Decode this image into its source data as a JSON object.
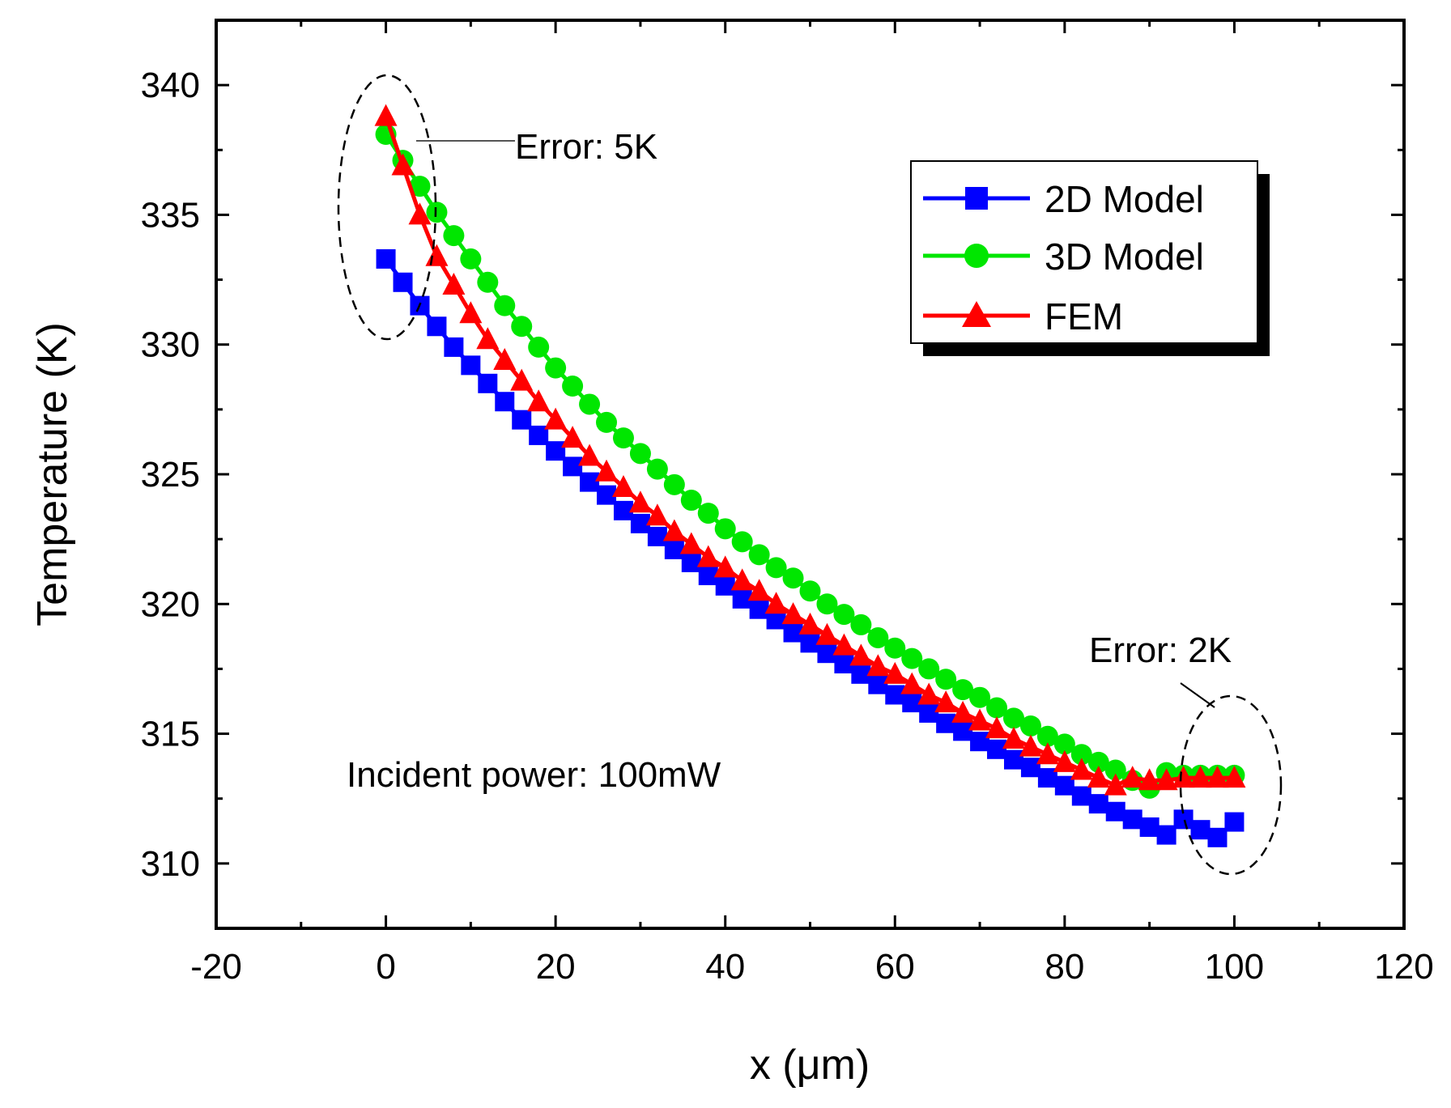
{
  "chart_data": {
    "type": "line",
    "title": "",
    "xlabel": "x (μm)",
    "ylabel": "Temperature (K)",
    "xlim": [
      -20,
      120
    ],
    "ylim": [
      307.5,
      342.5
    ],
    "xticks": [
      -20,
      0,
      20,
      40,
      60,
      80,
      100,
      120
    ],
    "yticks": [
      310,
      315,
      320,
      325,
      330,
      335,
      340
    ],
    "legend_position": "top-right",
    "grid": false,
    "series": [
      {
        "name": "2D Model",
        "color": "#0000ff",
        "marker": "square",
        "x_start": 0,
        "x_step": 2,
        "values": [
          333.3,
          332.4,
          331.5,
          330.7,
          329.9,
          329.2,
          328.5,
          327.8,
          327.1,
          326.5,
          325.9,
          325.3,
          324.7,
          324.2,
          323.6,
          323.1,
          322.6,
          322.1,
          321.6,
          321.1,
          320.7,
          320.2,
          319.8,
          319.4,
          318.9,
          318.5,
          318.1,
          317.7,
          317.3,
          316.9,
          316.5,
          316.2,
          315.8,
          315.4,
          315.1,
          314.7,
          314.4,
          314.0,
          313.7,
          313.3,
          313.0,
          312.6,
          312.3,
          312.0,
          311.7,
          311.4,
          311.1,
          311.7,
          311.3,
          311.0,
          311.6
        ]
      },
      {
        "name": "3D Model",
        "color": "#00e600",
        "marker": "circle",
        "x_start": 0,
        "x_step": 2,
        "values": [
          338.1,
          337.1,
          336.1,
          335.1,
          334.2,
          333.3,
          332.4,
          331.5,
          330.7,
          329.9,
          329.1,
          328.4,
          327.7,
          327.0,
          326.4,
          325.8,
          325.2,
          324.6,
          324.0,
          323.5,
          322.9,
          322.4,
          321.9,
          321.4,
          321.0,
          320.5,
          320.0,
          319.6,
          319.2,
          318.7,
          318.3,
          317.9,
          317.5,
          317.1,
          316.7,
          316.4,
          316.0,
          315.6,
          315.3,
          314.9,
          314.6,
          314.2,
          313.9,
          313.6,
          313.2,
          312.9,
          313.5,
          313.4,
          313.4,
          313.4,
          313.4
        ]
      },
      {
        "name": "FEM",
        "color": "#ff0000",
        "marker": "triangle",
        "x_start": 0,
        "x_step": 2,
        "values": [
          338.8,
          336.9,
          335.0,
          333.4,
          332.3,
          331.2,
          330.2,
          329.4,
          328.6,
          327.8,
          327.1,
          326.4,
          325.7,
          325.1,
          324.5,
          323.9,
          323.4,
          322.8,
          322.3,
          321.8,
          321.4,
          320.9,
          320.5,
          320.0,
          319.6,
          319.2,
          318.8,
          318.4,
          318.0,
          317.6,
          317.3,
          316.9,
          316.5,
          316.2,
          315.8,
          315.5,
          315.2,
          314.8,
          314.5,
          314.2,
          313.9,
          313.6,
          313.3,
          313.0,
          313.3,
          313.2,
          313.2,
          313.3,
          313.3,
          313.3,
          313.3
        ]
      }
    ],
    "annotations": [
      {
        "text": "Error: 5K",
        "at_x": 3,
        "at_y": 337
      },
      {
        "text": "Error: 2K",
        "at_x": 97,
        "at_y": 314
      },
      {
        "text": "Incident power: 100mW"
      }
    ]
  }
}
